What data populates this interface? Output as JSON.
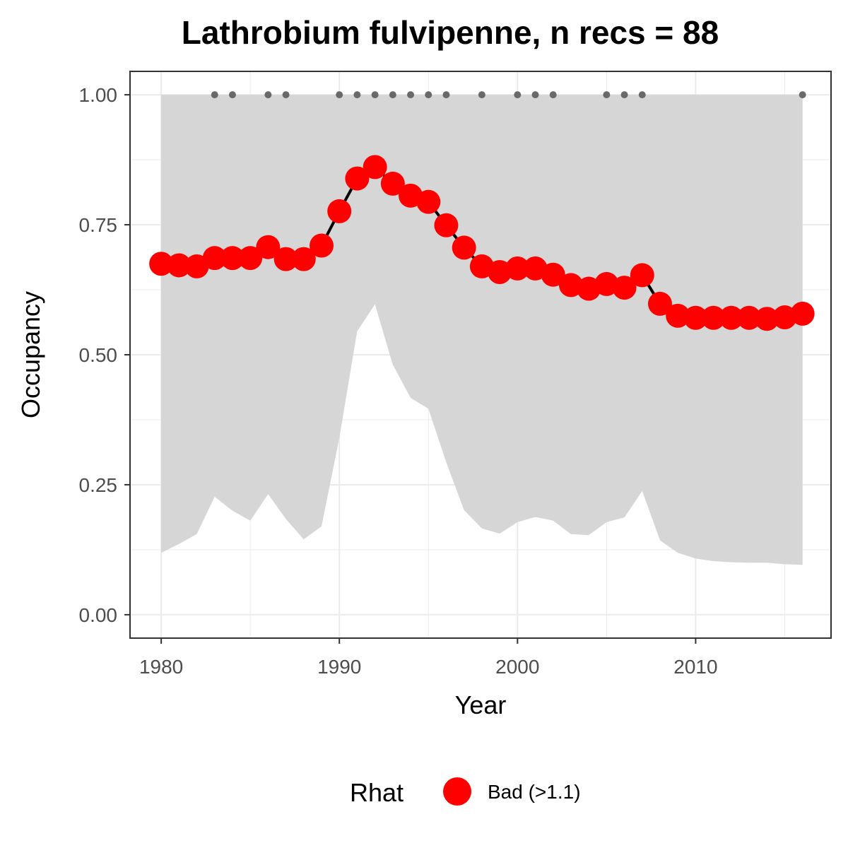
{
  "chart_data": {
    "type": "line",
    "title": "Lathrobium fulvipenne, n recs = 88",
    "xlabel": "Year",
    "ylabel": "Occupancy",
    "xlim": [
      1978.25,
      2017.6
    ],
    "ylim": [
      -0.045,
      1.045
    ],
    "x_ticks": [
      1980,
      1990,
      2000,
      2010
    ],
    "y_ticks": [
      0.0,
      0.25,
      0.5,
      0.75,
      1.0
    ],
    "x_tick_labels": [
      "1980",
      "1990",
      "2000",
      "2010"
    ],
    "y_tick_labels": [
      "0.00",
      "0.25",
      "0.50",
      "0.75",
      "1.00"
    ],
    "grid": true,
    "x": [
      1980,
      1981,
      1982,
      1983,
      1984,
      1985,
      1986,
      1987,
      1988,
      1989,
      1990,
      1991,
      1992,
      1993,
      1994,
      1995,
      1996,
      1997,
      1998,
      1999,
      2000,
      2001,
      2002,
      2003,
      2004,
      2005,
      2006,
      2007,
      2008,
      2009,
      2010,
      2011,
      2012,
      2013,
      2014,
      2015,
      2016
    ],
    "series": [
      {
        "values": [
          0.675,
          0.672,
          0.67,
          0.686,
          0.686,
          0.686,
          0.707,
          0.684,
          0.684,
          0.71,
          0.776,
          0.839,
          0.861,
          0.829,
          0.806,
          0.794,
          0.749,
          0.706,
          0.67,
          0.659,
          0.666,
          0.666,
          0.654,
          0.634,
          0.627,
          0.636,
          0.629,
          0.653,
          0.598,
          0.575,
          0.571,
          0.571,
          0.571,
          0.571,
          0.569,
          0.572,
          0.579
        ],
        "color": "#ff0000",
        "line_color": "#000000"
      }
    ],
    "interval": {
      "lower": [
        0.119,
        0.136,
        0.155,
        0.227,
        0.2,
        0.181,
        0.232,
        0.184,
        0.145,
        0.17,
        0.34,
        0.545,
        0.597,
        0.481,
        0.417,
        0.396,
        0.293,
        0.201,
        0.166,
        0.156,
        0.178,
        0.188,
        0.181,
        0.155,
        0.153,
        0.178,
        0.187,
        0.238,
        0.143,
        0.119,
        0.108,
        0.103,
        0.101,
        0.1,
        0.1,
        0.097,
        0.096
      ],
      "upper": [
        1.0,
        1.0,
        1.0,
        1.0,
        1.0,
        1.0,
        1.0,
        1.0,
        1.0,
        1.0,
        1.0,
        1.0,
        1.0,
        1.0,
        1.0,
        1.0,
        1.0,
        1.0,
        1.0,
        1.0,
        1.0,
        1.0,
        1.0,
        1.0,
        1.0,
        1.0,
        1.0,
        1.0,
        1.0,
        1.0,
        1.0,
        1.0,
        1.0,
        1.0,
        1.0,
        1.0,
        1.0
      ],
      "color": "#d6d6d6"
    },
    "record_years": [
      1983,
      1984,
      1986,
      1987,
      1990,
      1991,
      1992,
      1993,
      1994,
      1995,
      1996,
      1998,
      2000,
      2001,
      2002,
      2005,
      2006,
      2007,
      2016
    ],
    "record_marker_y": 1.0,
    "record_marker_color": "#696969",
    "legend": {
      "title": "Rhat",
      "items": [
        {
          "label": "Bad (>1.1)",
          "color": "#ff0000"
        }
      ],
      "position": "bottom"
    }
  }
}
